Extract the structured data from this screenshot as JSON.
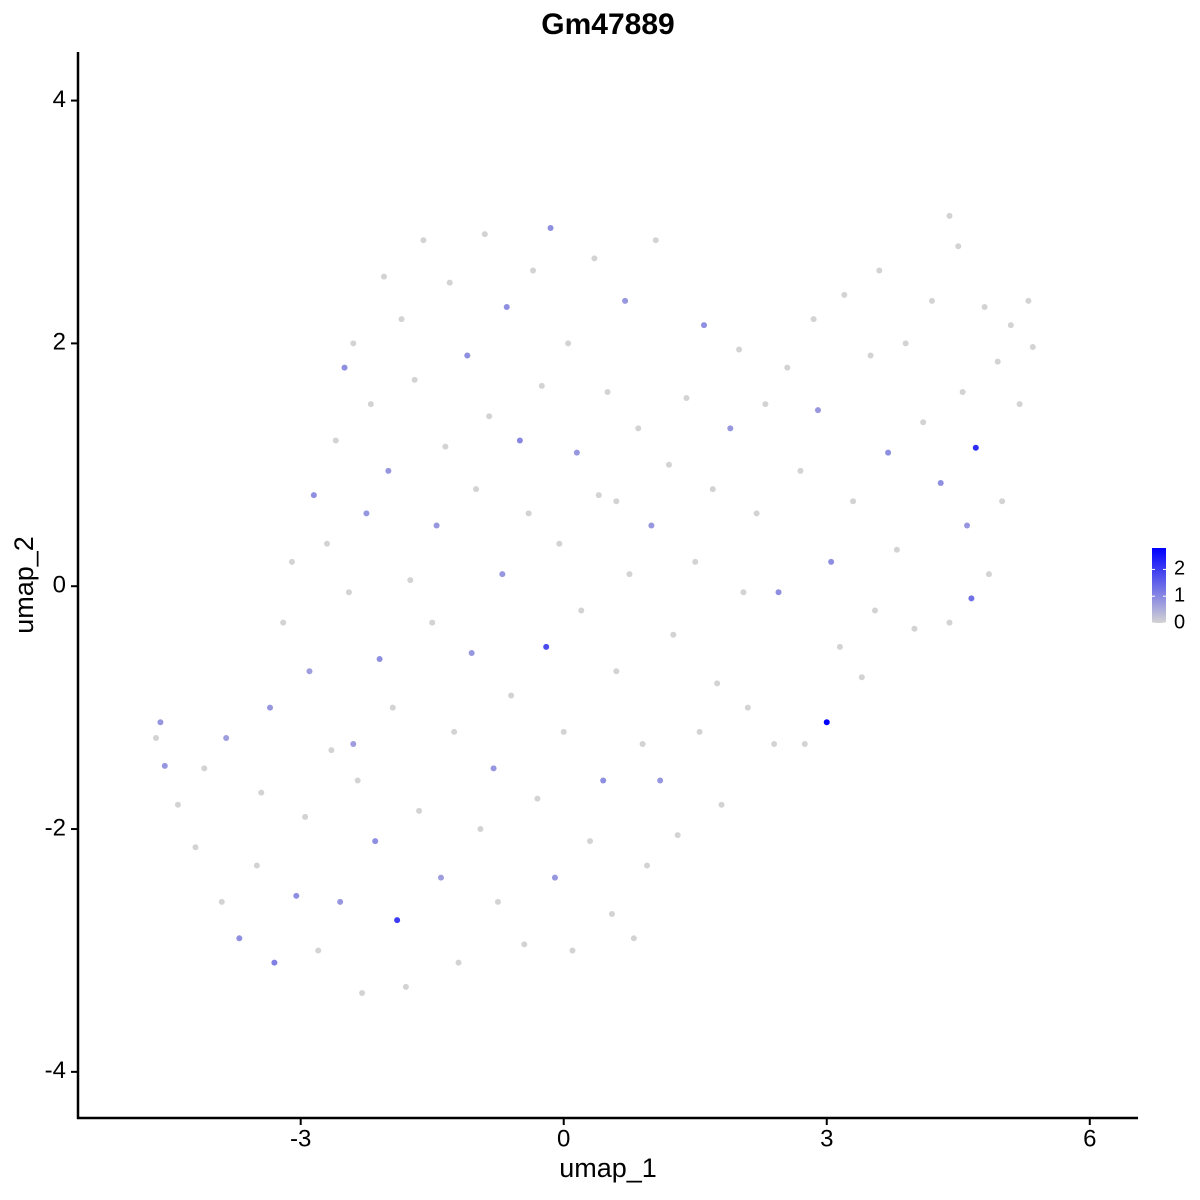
{
  "chart_data": {
    "type": "scatter",
    "title": "Gm47889",
    "x_label": "umap_1",
    "y_label": "umap_2",
    "xlim": [
      -5.54,
      6.55
    ],
    "ylim": [
      -4.38,
      4.4
    ],
    "xticks": [
      -3,
      0,
      3,
      6
    ],
    "yticks": [
      -4,
      -2,
      0,
      2,
      4
    ],
    "x": [
      -4.65,
      -4.6,
      -4.55,
      -4.4,
      -4.2,
      -4.1,
      -3.9,
      -3.85,
      -3.7,
      -3.5,
      -3.45,
      -3.35,
      -3.3,
      -3.2,
      -3.1,
      -3.05,
      -2.95,
      -2.9,
      -2.85,
      -2.8,
      -2.7,
      -2.65,
      -2.6,
      -2.55,
      -2.5,
      -2.45,
      -2.4,
      -2.35,
      -2.3,
      -2.25,
      -2.2,
      -2.15,
      -2.1,
      -2.05,
      -2.0,
      -1.95,
      -1.9,
      -1.85,
      -1.8,
      -1.75,
      -1.7,
      -1.65,
      -1.6,
      -1.5,
      -1.45,
      -1.4,
      -1.35,
      -1.3,
      -1.25,
      -1.2,
      -1.1,
      -1.05,
      -1.0,
      -0.95,
      -0.9,
      -0.85,
      -0.8,
      -0.75,
      -0.7,
      -0.65,
      -0.6,
      -0.5,
      -0.45,
      -0.4,
      -0.35,
      -0.3,
      -0.25,
      -0.2,
      -0.15,
      -0.1,
      -0.05,
      0,
      0.05,
      0.1,
      0.15,
      0.2,
      0.3,
      0.35,
      0.4,
      0.45,
      0.5,
      0.55,
      0.6,
      0.7,
      0.75,
      0.8,
      0.85,
      0.9,
      0.95,
      1.0,
      1.05,
      1.1,
      1.2,
      1.25,
      1.3,
      1.4,
      1.5,
      1.55,
      1.6,
      1.7,
      1.75,
      1.8,
      1.9,
      2.0,
      2.05,
      2.1,
      2.2,
      2.3,
      2.4,
      2.45,
      2.55,
      2.7,
      2.75,
      2.85,
      2.9,
      3.0,
      3.05,
      3.15,
      3.2,
      3.3,
      3.4,
      3.5,
      3.55,
      3.6,
      3.7,
      3.8,
      3.9,
      4.0,
      4.1,
      4.2,
      4.3,
      4.4,
      4.5,
      4.55,
      4.6,
      4.65,
      4.7,
      4.8,
      4.85,
      4.95,
      5.0,
      5.1,
      5.2,
      5.3,
      5.35,
      4.4,
      -2.4,
      0.6
    ],
    "y": [
      -1.25,
      -1.12,
      -1.48,
      -1.8,
      -2.15,
      -1.5,
      -2.6,
      -1.25,
      -2.9,
      -2.3,
      -1.7,
      -1.0,
      -3.1,
      -0.3,
      0.2,
      -2.55,
      -1.9,
      -0.7,
      0.75,
      -3.0,
      0.35,
      -1.35,
      1.2,
      -2.6,
      1.8,
      -0.05,
      2.0,
      -1.6,
      -3.35,
      0.6,
      1.5,
      -2.1,
      -0.6,
      2.55,
      0.95,
      -1.0,
      -2.75,
      2.2,
      -3.3,
      0.05,
      1.7,
      -1.85,
      2.85,
      -0.3,
      0.5,
      -2.4,
      1.15,
      2.5,
      -1.2,
      -3.1,
      1.9,
      -0.55,
      0.8,
      -2.0,
      2.9,
      1.4,
      -1.5,
      -2.6,
      0.1,
      2.3,
      -0.9,
      1.2,
      -2.95,
      0.6,
      2.6,
      -1.75,
      1.65,
      -0.5,
      2.95,
      -2.4,
      0.35,
      -1.2,
      2.0,
      -3.0,
      1.1,
      -0.2,
      -2.1,
      2.7,
      0.75,
      -1.6,
      1.6,
      -2.7,
      -0.7,
      2.35,
      0.1,
      -2.9,
      1.3,
      -1.3,
      -2.3,
      0.5,
      2.85,
      -1.6,
      1.0,
      -0.4,
      -2.05,
      1.55,
      0.2,
      -1.2,
      2.15,
      0.8,
      -0.8,
      -1.8,
      1.3,
      1.95,
      -0.05,
      -1.0,
      0.6,
      1.5,
      -1.3,
      -0.05,
      1.8,
      0.95,
      -1.3,
      2.2,
      1.45,
      -1.12,
      0.2,
      -0.5,
      2.4,
      0.7,
      -0.75,
      1.9,
      -0.2,
      2.6,
      1.1,
      0.3,
      2.0,
      -0.35,
      1.35,
      2.35,
      0.85,
      -0.3,
      2.8,
      1.6,
      0.5,
      -0.1,
      1.14,
      2.3,
      0.1,
      1.85,
      0.7,
      2.15,
      1.5,
      2.35,
      1.97,
      3.05,
      -1.3,
      0.7
    ],
    "expression": [
      0,
      0.8,
      0.8,
      0,
      0,
      0,
      0,
      0.7,
      0.9,
      0,
      0,
      0.8,
      1.1,
      0,
      0,
      0.9,
      0,
      0.7,
      0.9,
      0,
      0,
      0,
      0,
      0.8,
      0.9,
      0,
      0,
      0,
      0,
      0.8,
      0,
      0.9,
      0.9,
      0,
      0.8,
      0,
      2.0,
      0,
      0,
      0,
      0,
      0,
      0,
      0,
      0.8,
      0.7,
      0,
      0,
      0,
      0,
      0.9,
      0.8,
      0,
      0,
      0,
      0,
      0.8,
      0,
      0.8,
      0.9,
      0,
      1.0,
      0,
      0,
      0,
      0,
      0,
      1.8,
      0.9,
      0.8,
      0,
      0,
      0,
      0,
      0.8,
      0,
      0,
      0,
      0,
      0.9,
      0,
      0,
      0,
      0.8,
      0,
      0,
      0,
      0,
      0,
      0.8,
      0,
      0.8,
      0,
      0,
      0,
      0,
      0,
      0,
      0.9,
      0,
      0,
      0,
      0.8,
      0,
      0,
      0,
      0,
      0,
      0,
      0.9,
      0,
      0,
      0,
      0,
      0.8,
      2.8,
      0.9,
      0,
      0,
      0,
      0,
      0,
      0,
      0,
      0.9,
      0,
      0,
      0,
      0,
      0,
      0.9,
      0,
      0,
      0,
      0.8,
      1.3,
      2.2,
      0,
      0,
      0,
      0,
      0,
      0,
      0,
      0,
      0,
      0.7,
      0
    ],
    "colorbar": {
      "limits": [
        0,
        2.8
      ],
      "ticks": [
        0,
        1,
        2
      ],
      "low_color": "#d3d3d3",
      "high_color": "#0000ff"
    }
  }
}
